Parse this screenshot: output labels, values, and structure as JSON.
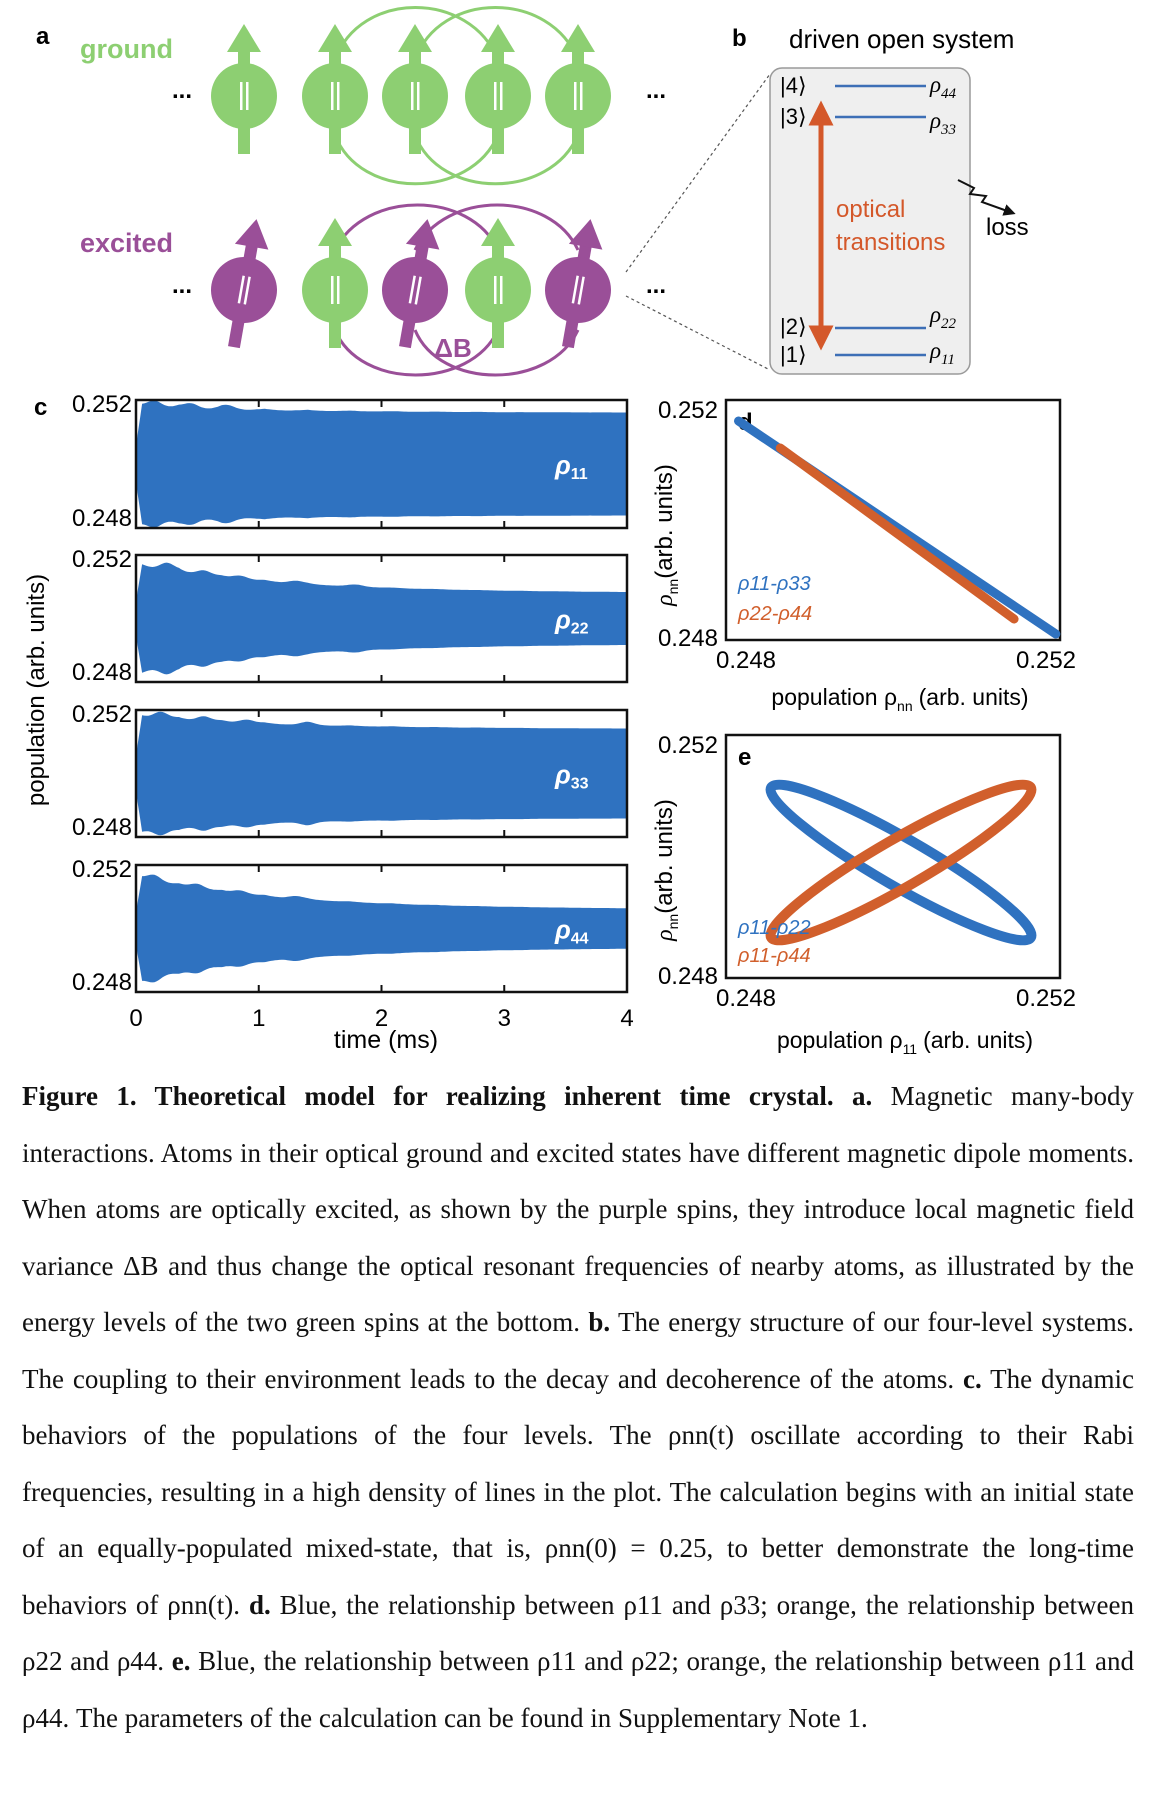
{
  "panel_a": {
    "label": "a",
    "ground_label": "ground",
    "excited_label": "excited",
    "ellipsis": "...",
    "delta_b": "ΔB",
    "colors": {
      "green": "#8dcf72",
      "purple": "#9a4f98"
    }
  },
  "panel_b": {
    "label": "b",
    "title": "driven open system",
    "levels": [
      "|4⟩",
      "|3⟩",
      "|2⟩",
      "|1⟩"
    ],
    "rho_base": "ρ",
    "rho_subs": [
      "44",
      "33",
      "22",
      "11"
    ],
    "optical_text": [
      "optical",
      "transitions"
    ],
    "loss_label": "loss",
    "colors": {
      "arrow": "#d4582a",
      "levels": "#3d6fb6"
    }
  },
  "panel_c": {
    "label": "c",
    "ylabel": "population (arb. units)",
    "xlabel": "time (ms)"
  },
  "panel_d": {
    "label": "d",
    "ylabel_base": "ρ",
    "ylabel_sub": "nn",
    "ylabel_rest": "(arb. units)",
    "xlabel_base": "population ρ",
    "xlabel_sub": "nn",
    "xlabel_rest": "(arb. units)"
  },
  "panel_e": {
    "label": "e",
    "ylabel_base": "ρ",
    "ylabel_sub": "nn",
    "ylabel_rest": "(arb. units)",
    "xlabel_base": "population ρ",
    "xlabel_sub": "11",
    "xlabel_rest": "(arb. units)"
  },
  "chart_data": [
    {
      "type": "line",
      "panel": "c",
      "x_label": "time (ms)",
      "y_label": "population (arb. units)",
      "xlim": [
        0,
        4
      ],
      "x_ticks": [
        "0",
        "1",
        "2",
        "3",
        "4"
      ],
      "subplots": [
        {
          "name": "ρ11",
          "ylim": [
            0.248,
            0.252
          ],
          "y_ticks": [
            "0.252",
            "0.248"
          ],
          "center": 0.25,
          "amplitude_start": 0.0019,
          "amplitude_end": 0.0016,
          "envelope_bumps_ms": [
            0.15,
            0.45,
            0.75
          ]
        },
        {
          "name": "ρ22",
          "ylim": [
            0.248,
            0.252
          ],
          "y_ticks": [
            "0.252",
            "0.248"
          ],
          "center": 0.25,
          "amplitude_start": 0.0018,
          "amplitude_end": 0.0008,
          "envelope_bumps_ms": [
            0.25,
            0.55,
            0.85,
            1.3,
            1.8
          ]
        },
        {
          "name": "ρ33",
          "ylim": [
            0.248,
            0.252
          ],
          "y_ticks": [
            "0.252",
            "0.248"
          ],
          "center": 0.25,
          "amplitude_start": 0.0019,
          "amplitude_end": 0.0014,
          "envelope_bumps_ms": [
            0.2,
            0.55,
            0.9,
            1.4
          ]
        },
        {
          "name": "ρ44",
          "ylim": [
            0.248,
            0.252
          ],
          "y_ticks": [
            "0.252",
            "0.248"
          ],
          "center": 0.25,
          "amplitude_start": 0.0017,
          "amplitude_end": 0.0006,
          "envelope_bumps_ms": [
            0.15,
            0.5,
            0.85,
            1.3
          ]
        }
      ],
      "color": "#2f72c0"
    },
    {
      "type": "scatter",
      "panel": "d",
      "x_label": "population ρnn (arb. units)",
      "y_label": "ρnn (arb. units)",
      "xlim": [
        0.248,
        0.252
      ],
      "ylim": [
        0.248,
        0.252
      ],
      "x_ticks": [
        "0.248",
        "0.252"
      ],
      "y_ticks": [
        "0.252",
        "0.248"
      ],
      "series": [
        {
          "name": "ρ11-ρ33",
          "color": "#2f72c0",
          "x_range": [
            0.24815,
            0.25195
          ],
          "y_range": [
            0.25165,
            0.2481
          ]
        },
        {
          "name": "ρ22-ρ44",
          "color": "#d15f2c",
          "x_range": [
            0.24865,
            0.25145
          ],
          "y_range": [
            0.2512,
            0.24835
          ]
        }
      ]
    },
    {
      "type": "scatter",
      "panel": "e",
      "x_label": "population ρ11 (arb. units)",
      "y_label": "ρnn (arb. units)",
      "xlim": [
        0.248,
        0.252
      ],
      "ylim": [
        0.248,
        0.252
      ],
      "x_ticks": [
        "0.248",
        "0.252"
      ],
      "y_ticks": [
        "0.252",
        "0.248"
      ],
      "series": [
        {
          "name": "ρ11-ρ22",
          "color": "#2f72c0",
          "shape": "narrow loop, descending"
        },
        {
          "name": "ρ11-ρ44",
          "color": "#d15f2c",
          "shape": "narrow loop, ascending"
        }
      ]
    }
  ],
  "caption": {
    "fig_label": "Figure 1. Theoretical model for realizing inherent time crystal.",
    "a_label": "a.",
    "a_text": "Magnetic many-body interactions. Atoms in their optical ground and excited states have different magnetic dipole moments. When atoms are optically excited, as shown by the purple spins, they introduce local magnetic field variance ΔB and thus change the optical resonant frequencies of nearby atoms, as illustrated by the energy levels of the two green spins at the bottom.",
    "b_label": "b.",
    "b_text": "The energy structure of our four-level systems. The coupling to their environment leads to the decay and decoherence of the atoms.",
    "c_label": "c.",
    "c_text": "The dynamic behaviors of the populations of the four levels. The ρnn(t) oscillate according to their Rabi frequencies, resulting in a high density of lines in the plot. The calculation begins with an initial state of an equally-populated mixed-state, that is, ρnn(0) = 0.25, to better demonstrate the long-time behaviors of ρnn(t).",
    "d_label": "d.",
    "d_text": "Blue, the relationship between ρ11 and ρ33; orange, the relationship between ρ22 and ρ44.",
    "e_label": "e.",
    "e_text": "Blue, the relationship between ρ11 and ρ22; orange, the relationship between ρ11 and ρ44. The parameters of the calculation can be found in Supplementary Note 1."
  }
}
